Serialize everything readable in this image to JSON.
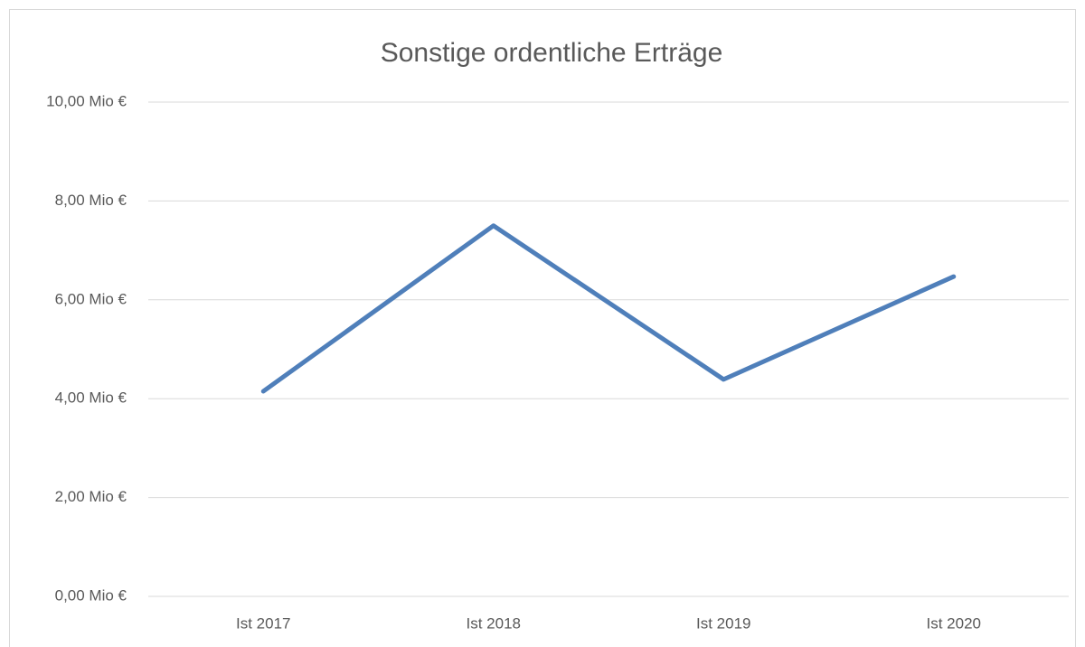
{
  "chart_data": {
    "type": "line",
    "title": "Sonstige ordentliche Erträge",
    "categories": [
      "Ist 2017",
      "Ist 2018",
      "Ist 2019",
      "Ist 2020"
    ],
    "series": [
      {
        "name": "Sonstige ordentliche Erträge",
        "color": "#4f7fba",
        "values": [
          4.15,
          7.5,
          4.39,
          6.47
        ]
      }
    ],
    "ylim": [
      0,
      10
    ],
    "yticks": [
      {
        "value": 0,
        "label": "0,00 Mio €"
      },
      {
        "value": 2,
        "label": "2,00 Mio €"
      },
      {
        "value": 4,
        "label": "4,00 Mio €"
      },
      {
        "value": 6,
        "label": "6,00 Mio €"
      },
      {
        "value": 8,
        "label": "8,00 Mio €"
      },
      {
        "value": 10,
        "label": "10,00 Mio €"
      }
    ],
    "grid": true
  }
}
